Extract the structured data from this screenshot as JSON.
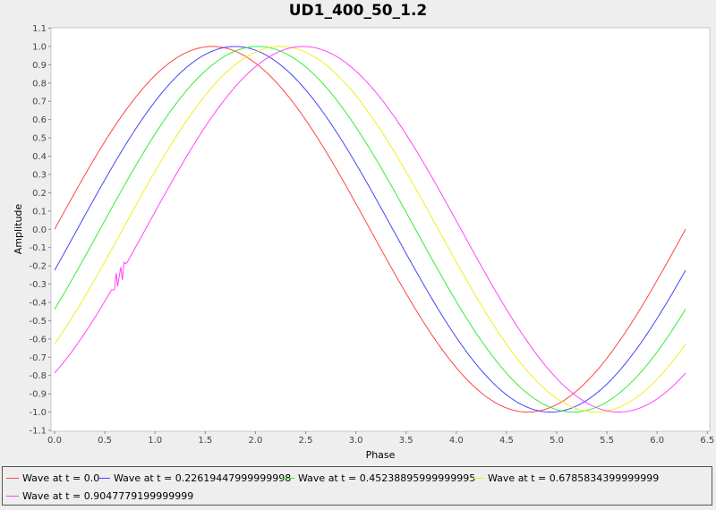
{
  "chart_data": {
    "type": "line",
    "title": "UD1_400_50_1.2",
    "xlabel": "Phase",
    "ylabel": "Amplitude",
    "xlim": [
      0.0,
      6.55
    ],
    "ylim": [
      -1.1,
      1.1
    ],
    "x_ticks": [
      "0.0",
      "0.5",
      "1.0",
      "1.5",
      "2.0",
      "2.5",
      "3.0",
      "3.5",
      "4.0",
      "4.5",
      "5.0",
      "5.5",
      "6.0",
      "6.5"
    ],
    "y_ticks": [
      "1.1",
      "1.0",
      "0.9",
      "0.8",
      "0.7",
      "0.6",
      "0.5",
      "0.4",
      "0.3",
      "0.2",
      "0.1",
      "0.0",
      "-0.1",
      "-0.2",
      "-0.3",
      "-0.4",
      "-0.5",
      "-0.6",
      "-0.7",
      "-0.8",
      "-0.9",
      "-1.0",
      "-1.1"
    ],
    "x_range": [
      0.0,
      6.283
    ],
    "grid": false,
    "legend_position": "bottom",
    "series": [
      {
        "name": "Wave at t = 0.0",
        "phase_shift": 0.0,
        "color": "#ff4444"
      },
      {
        "name": "Wave at t = 0.22619447999999998",
        "phase_shift": 0.22619447999999998,
        "color": "#4444ff"
      },
      {
        "name": "Wave at t = 0.45238895999999995",
        "phase_shift": 0.45238895999999995,
        "color": "#33ee33"
      },
      {
        "name": "Wave at t = 0.6785834399999999",
        "phase_shift": 0.6785834399999999,
        "color": "#eeee22"
      },
      {
        "name": "Wave at t = 0.9047779199999999",
        "phase_shift": 0.9047779199999999,
        "color": "#ff44ff"
      }
    ]
  }
}
